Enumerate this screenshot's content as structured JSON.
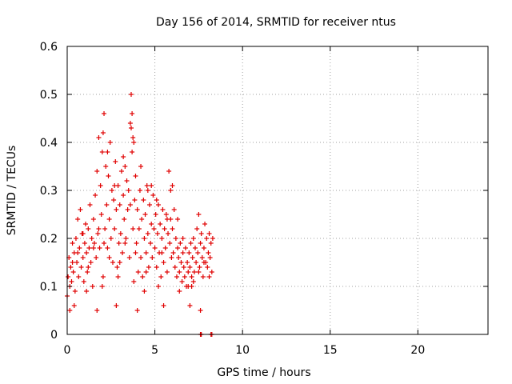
{
  "chart_data": {
    "type": "scatter",
    "title": "Day 156 of 2014, SRMTID for receiver ntus",
    "xlabel": "GPS time / hours",
    "ylabel": "SRMTID / TECUs",
    "xlim": [
      0,
      24
    ],
    "ylim": [
      0,
      0.6
    ],
    "x_ticks": [
      "0",
      "5",
      "10",
      "15",
      "20"
    ],
    "y_ticks": [
      "0",
      "0.1",
      "0.2",
      "0.3",
      "0.4",
      "0.5",
      "0.6"
    ],
    "grid": true,
    "marker": "+",
    "color": "#e00000",
    "series": [
      {
        "name": "SRMTID",
        "points": [
          [
            0.0,
            0.08
          ],
          [
            0.05,
            0.12
          ],
          [
            0.1,
            0.16
          ],
          [
            0.15,
            0.1
          ],
          [
            0.2,
            0.14
          ],
          [
            0.25,
            0.11
          ],
          [
            0.3,
            0.19
          ],
          [
            0.35,
            0.13
          ],
          [
            0.4,
            0.17
          ],
          [
            0.45,
            0.09
          ],
          [
            0.5,
            0.2
          ],
          [
            0.55,
            0.15
          ],
          [
            0.6,
            0.24
          ],
          [
            0.65,
            0.12
          ],
          [
            0.7,
            0.18
          ],
          [
            0.75,
            0.26
          ],
          [
            0.8,
            0.14
          ],
          [
            0.85,
            0.21
          ],
          [
            0.9,
            0.16
          ],
          [
            0.95,
            0.11
          ],
          [
            1.0,
            0.19
          ],
          [
            1.05,
            0.23
          ],
          [
            1.1,
            0.17
          ],
          [
            1.15,
            0.13
          ],
          [
            1.2,
            0.22
          ],
          [
            1.25,
            0.18
          ],
          [
            1.3,
            0.27
          ],
          [
            1.35,
            0.15
          ],
          [
            1.4,
            0.2
          ],
          [
            1.45,
            0.1
          ],
          [
            1.5,
            0.24
          ],
          [
            1.55,
            0.19
          ],
          [
            1.6,
            0.29
          ],
          [
            1.65,
            0.16
          ],
          [
            1.7,
            0.34
          ],
          [
            1.75,
            0.21
          ],
          [
            1.8,
            0.41
          ],
          [
            1.85,
            0.18
          ],
          [
            1.9,
            0.31
          ],
          [
            1.95,
            0.25
          ],
          [
            2.0,
            0.38
          ],
          [
            2.05,
            0.12
          ],
          [
            2.1,
            0.46
          ],
          [
            2.15,
            0.22
          ],
          [
            2.2,
            0.35
          ],
          [
            2.25,
            0.27
          ],
          [
            2.3,
            0.18
          ],
          [
            2.35,
            0.33
          ],
          [
            2.4,
            0.24
          ],
          [
            2.45,
            0.4
          ],
          [
            2.5,
            0.2
          ],
          [
            2.55,
            0.3
          ],
          [
            2.6,
            0.15
          ],
          [
            2.65,
            0.28
          ],
          [
            2.7,
            0.22
          ],
          [
            2.75,
            0.36
          ],
          [
            2.8,
            0.26
          ],
          [
            2.85,
            0.14
          ],
          [
            2.9,
            0.31
          ],
          [
            2.95,
            0.19
          ],
          [
            3.0,
            0.27
          ],
          [
            3.05,
            0.21
          ],
          [
            3.1,
            0.34
          ],
          [
            3.15,
            0.17
          ],
          [
            3.2,
            0.29
          ],
          [
            3.25,
            0.24
          ],
          [
            3.3,
            0.35
          ],
          [
            3.35,
            0.2
          ],
          [
            3.4,
            0.32
          ],
          [
            3.45,
            0.26
          ],
          [
            3.5,
            0.3
          ],
          [
            3.55,
            0.16
          ],
          [
            3.6,
            0.44
          ],
          [
            3.65,
            0.5
          ],
          [
            3.7,
            0.38
          ],
          [
            3.75,
            0.22
          ],
          [
            3.8,
            0.4
          ],
          [
            3.85,
            0.28
          ],
          [
            3.9,
            0.33
          ],
          [
            3.95,
            0.19
          ],
          [
            4.0,
            0.26
          ],
          [
            4.05,
            0.13
          ],
          [
            4.1,
            0.22
          ],
          [
            4.15,
            0.3
          ],
          [
            4.2,
            0.16
          ],
          [
            4.25,
            0.24
          ],
          [
            4.3,
            0.12
          ],
          [
            4.35,
            0.28
          ],
          [
            4.4,
            0.2
          ],
          [
            4.45,
            0.25
          ],
          [
            4.5,
            0.17
          ],
          [
            4.55,
            0.31
          ],
          [
            4.6,
            0.21
          ],
          [
            4.65,
            0.14
          ],
          [
            4.7,
            0.27
          ],
          [
            4.75,
            0.19
          ],
          [
            4.8,
            0.23
          ],
          [
            4.85,
            0.16
          ],
          [
            4.9,
            0.29
          ],
          [
            4.95,
            0.22
          ],
          [
            5.0,
            0.18
          ],
          [
            5.05,
            0.25
          ],
          [
            5.1,
            0.14
          ],
          [
            5.15,
            0.21
          ],
          [
            5.2,
            0.27
          ],
          [
            5.25,
            0.17
          ],
          [
            5.3,
            0.23
          ],
          [
            5.35,
            0.12
          ],
          [
            5.4,
            0.2
          ],
          [
            5.45,
            0.26
          ],
          [
            5.5,
            0.15
          ],
          [
            5.55,
            0.22
          ],
          [
            5.6,
            0.18
          ],
          [
            5.65,
            0.25
          ],
          [
            5.7,
            0.13
          ],
          [
            5.75,
            0.21
          ],
          [
            5.8,
            0.34
          ],
          [
            5.85,
            0.19
          ],
          [
            5.9,
            0.24
          ],
          [
            5.95,
            0.16
          ],
          [
            6.0,
            0.22
          ],
          [
            6.05,
            0.17
          ],
          [
            6.1,
            0.26
          ],
          [
            6.15,
            0.14
          ],
          [
            6.2,
            0.2
          ],
          [
            6.25,
            0.12
          ],
          [
            6.3,
            0.18
          ],
          [
            6.35,
            0.16
          ],
          [
            6.4,
            0.13
          ],
          [
            6.45,
            0.19
          ],
          [
            6.5,
            0.15
          ],
          [
            6.55,
            0.11
          ],
          [
            6.6,
            0.17
          ],
          [
            6.65,
            0.14
          ],
          [
            6.7,
            0.12
          ],
          [
            6.75,
            0.18
          ],
          [
            6.8,
            0.1
          ],
          [
            6.85,
            0.15
          ],
          [
            6.9,
            0.13
          ],
          [
            6.95,
            0.17
          ],
          [
            7.0,
            0.14
          ],
          [
            7.05,
            0.19
          ],
          [
            7.1,
            0.12
          ],
          [
            7.15,
            0.16
          ],
          [
            7.2,
            0.2
          ],
          [
            7.25,
            0.13
          ],
          [
            7.3,
            0.18
          ],
          [
            7.35,
            0.15
          ],
          [
            7.4,
            0.22
          ],
          [
            7.45,
            0.17
          ],
          [
            7.5,
            0.25
          ],
          [
            7.55,
            0.14
          ],
          [
            7.6,
            0.19
          ],
          [
            7.65,
            0.21
          ],
          [
            7.7,
            0.16
          ],
          [
            7.75,
            0.12
          ],
          [
            7.8,
            0.18
          ],
          [
            7.85,
            0.23
          ],
          [
            7.9,
            0.15
          ],
          [
            7.95,
            0.2
          ],
          [
            8.0,
            0.14
          ],
          [
            8.05,
            0.17
          ],
          [
            8.1,
            0.21
          ],
          [
            8.15,
            0.16
          ],
          [
            8.2,
            0.19
          ],
          [
            8.25,
            0.13
          ],
          [
            8.3,
            0.2
          ],
          [
            0.3,
            0.15
          ],
          [
            0.6,
            0.17
          ],
          [
            0.9,
            0.21
          ],
          [
            1.2,
            0.14
          ],
          [
            1.5,
            0.18
          ],
          [
            1.8,
            0.22
          ],
          [
            2.1,
            0.19
          ],
          [
            2.4,
            0.16
          ],
          [
            2.7,
            0.31
          ],
          [
            3.0,
            0.15
          ],
          [
            3.3,
            0.19
          ],
          [
            3.6,
            0.27
          ],
          [
            3.9,
            0.17
          ],
          [
            4.2,
            0.35
          ],
          [
            4.5,
            0.13
          ],
          [
            4.8,
            0.31
          ],
          [
            5.1,
            0.28
          ],
          [
            5.4,
            0.17
          ],
          [
            5.7,
            0.24
          ],
          [
            6.0,
            0.31
          ],
          [
            6.3,
            0.24
          ],
          [
            6.6,
            0.2
          ],
          [
            6.9,
            0.1
          ],
          [
            7.2,
            0.11
          ],
          [
            7.5,
            0.13
          ],
          [
            7.8,
            0.15
          ],
          [
            8.1,
            0.12
          ],
          [
            1.1,
            0.09
          ],
          [
            2.0,
            0.1
          ],
          [
            2.9,
            0.12
          ],
          [
            3.8,
            0.11
          ],
          [
            4.4,
            0.09
          ],
          [
            5.2,
            0.1
          ],
          [
            6.4,
            0.09
          ],
          [
            7.1,
            0.1
          ],
          [
            2.05,
            0.42
          ],
          [
            2.3,
            0.38
          ],
          [
            3.2,
            0.37
          ],
          [
            3.7,
            0.46
          ],
          [
            3.65,
            0.43
          ],
          [
            3.75,
            0.41
          ],
          [
            4.6,
            0.3
          ],
          [
            5.9,
            0.3
          ],
          [
            0.15,
            0.05
          ],
          [
            0.4,
            0.06
          ],
          [
            1.7,
            0.05
          ],
          [
            2.8,
            0.06
          ],
          [
            4.0,
            0.05
          ],
          [
            5.5,
            0.06
          ],
          [
            7.0,
            0.06
          ],
          [
            7.6,
            0.05
          ],
          [
            7.6,
            0.0
          ],
          [
            7.65,
            0.0
          ],
          [
            8.2,
            0.0
          ],
          [
            8.25,
            0.0
          ]
        ]
      }
    ]
  }
}
